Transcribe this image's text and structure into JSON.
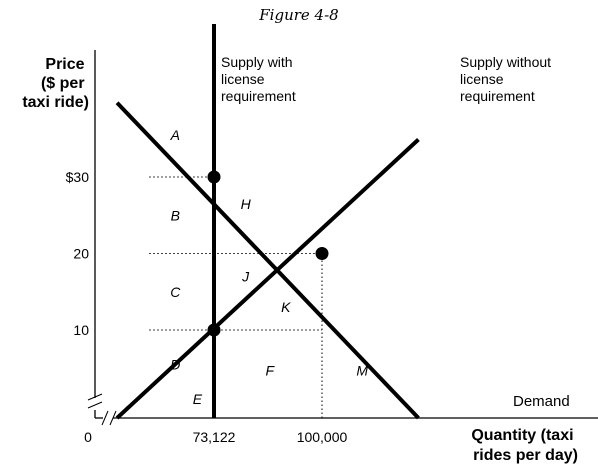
{
  "figure_title": "Figure 4-8",
  "chart_data": {
    "type": "line",
    "title": "Figure 4-8",
    "ylabel": [
      "Price",
      "($ per",
      "taxi ride)"
    ],
    "xlabel": [
      "Quantity (taxi",
      "rides per day)"
    ],
    "origin_label": "0",
    "y_ticks": [
      {
        "value": 30,
        "label": "$30"
      },
      {
        "value": 20,
        "label": "20"
      },
      {
        "value": 10,
        "label": "10"
      }
    ],
    "x_ticks": [
      {
        "value": 73122,
        "label": "73,122"
      },
      {
        "value": 100000,
        "label": "100,000"
      }
    ],
    "axis_break_marks": true,
    "series": [
      {
        "name": "Demand",
        "label": [
          "Demand"
        ],
        "x": [
          49000,
          124000
        ],
        "y": [
          39.7,
          -1.5
        ]
      },
      {
        "name": "Supply without license requirement",
        "label": [
          "Supply without",
          "license",
          "requirement"
        ],
        "x": [
          49000,
          124000
        ],
        "y": [
          -1.5,
          34.9
        ]
      },
      {
        "name": "Supply with license requirement",
        "label": [
          "Supply with",
          "license",
          "requirement"
        ],
        "x": [
          73122,
          73122
        ],
        "y": [
          -1.5,
          50
        ]
      }
    ],
    "points": [
      {
        "x": 73122,
        "y": 30
      },
      {
        "x": 100000,
        "y": 20
      },
      {
        "x": 73122,
        "y": 10
      }
    ],
    "dotted_guides": [
      {
        "from": [
          57000,
          30
        ],
        "to": [
          73122,
          30
        ]
      },
      {
        "from": [
          57000,
          20
        ],
        "to": [
          100000,
          20
        ]
      },
      {
        "from": [
          57000,
          10
        ],
        "to": [
          100000,
          10
        ]
      },
      {
        "from": [
          100000,
          -1.5
        ],
        "to": [
          100000,
          20
        ]
      }
    ],
    "regions": [
      {
        "label": "A",
        "x": 63500,
        "y": 35.5
      },
      {
        "label": "B",
        "x": 63500,
        "y": 25
      },
      {
        "label": "C",
        "x": 63500,
        "y": 15
      },
      {
        "label": "D",
        "x": 63500,
        "y": 5.5
      },
      {
        "label": "E",
        "x": 69000,
        "y": 1
      },
      {
        "label": "H",
        "x": 81000,
        "y": 26.5
      },
      {
        "label": "J",
        "x": 81000,
        "y": 17
      },
      {
        "label": "K",
        "x": 91000,
        "y": 13
      },
      {
        "label": "F",
        "x": 87000,
        "y": 4.7
      },
      {
        "label": "M",
        "x": 110000,
        "y": 4.7
      }
    ],
    "xlim": [
      46000,
      124000
    ],
    "ylim": [
      -1.5,
      50
    ]
  }
}
